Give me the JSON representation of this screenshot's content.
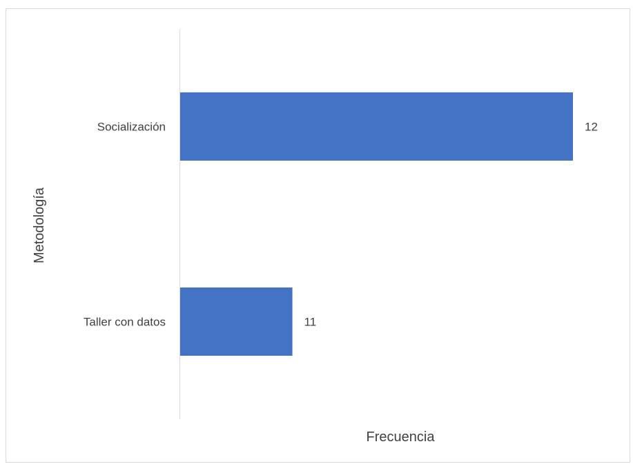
{
  "chart_data": {
    "type": "bar",
    "orientation": "horizontal",
    "categories": [
      "Socialización",
      "Taller con datos"
    ],
    "values": [
      12,
      11
    ],
    "data_labels": [
      "12",
      "11"
    ],
    "title": "",
    "xlabel": "Frecuencia",
    "ylabel": "Metodología",
    "xlim": [
      10.6,
      12
    ],
    "grid": false,
    "legend": "none",
    "bar_color": "#4472C4",
    "axis_color": "#d9d9d9",
    "text_color": "#404040"
  }
}
